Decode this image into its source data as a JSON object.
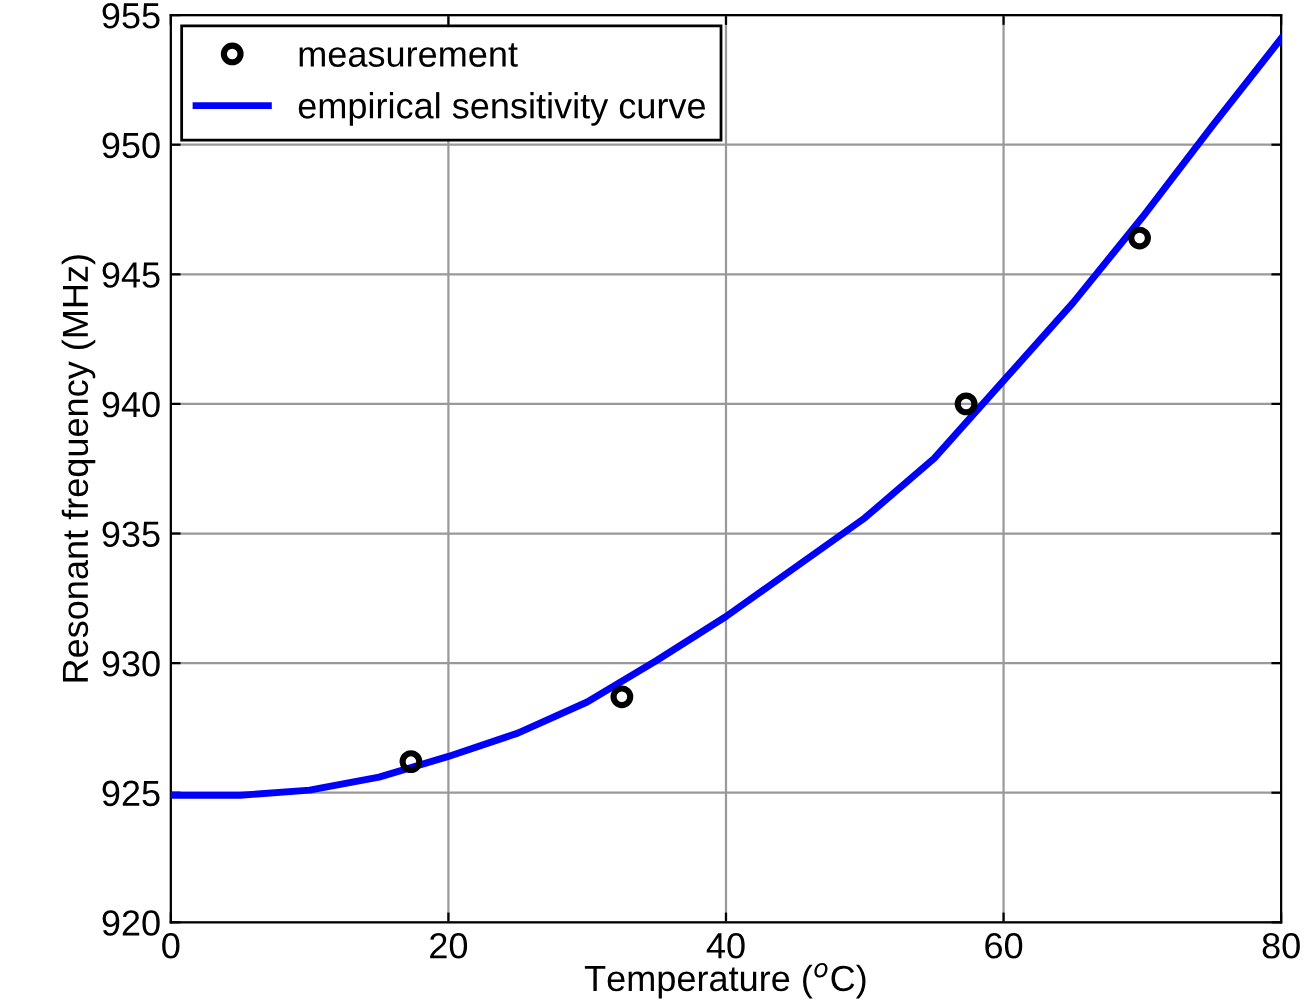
{
  "chart_data": {
    "type": "scatter",
    "xlabel": "Temperature ($^{o}$C)",
    "ylabel": "Resonant frequency (MHz)",
    "xlim": [
      0,
      80
    ],
    "xticks": [
      0,
      20,
      40,
      60,
      80
    ],
    "ylim": [
      920,
      955
    ],
    "yticks": [
      920,
      925,
      930,
      935,
      940,
      945,
      950,
      955
    ],
    "grid": true,
    "legend": "top left",
    "series": [
      {
        "name": "measurement",
        "marker": "circle",
        "color": "#000000",
        "x": [
          17.3,
          32.5,
          57.3,
          69.8
        ],
        "values": [
          926.2,
          928.7,
          940.0,
          946.4
        ]
      },
      {
        "name": "empirical sensitivity curve",
        "type": "line",
        "line_style": "solid",
        "color": "#0000ff",
        "x": [
          0,
          5,
          10,
          15,
          20,
          25,
          30,
          35,
          40,
          45,
          50,
          55,
          60,
          65,
          70,
          75,
          80
        ],
        "values": [
          924.9,
          924.9,
          925.1,
          925.6,
          926.4,
          927.3,
          928.5,
          930.1,
          931.8,
          933.7,
          935.6,
          937.9,
          940.9,
          943.9,
          947.2,
          950.7,
          954.1
        ]
      }
    ]
  }
}
